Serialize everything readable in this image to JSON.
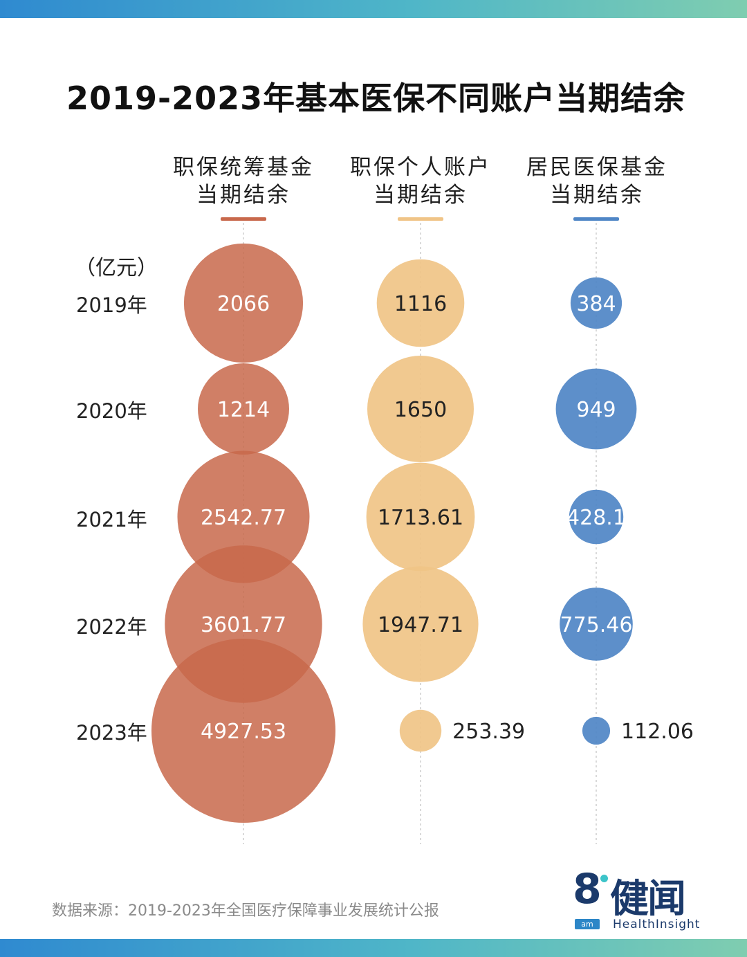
{
  "title": "2019-2023年基本医保不同账户当期结余",
  "unit_label": "（亿元）",
  "columns": [
    {
      "line1": "职保统筹基金",
      "line2": "当期结余",
      "color": "#c8684b"
    },
    {
      "line1": "职保个人账户",
      "line2": "当期结余",
      "color": "#f0c487"
    },
    {
      "line1": "居民医保基金",
      "line2": "当期结余",
      "color": "#4f86c6"
    }
  ],
  "chart_data": {
    "type": "bubble",
    "title": "2019-2023年基本医保不同账户当期结余",
    "unit": "亿元",
    "categories": [
      "2019年",
      "2020年",
      "2021年",
      "2022年",
      "2023年"
    ],
    "series": [
      {
        "name": "职保统筹基金当期结余",
        "values": [
          2066,
          1214,
          2542.77,
          3601.77,
          4927.53
        ],
        "labels": [
          "2066",
          "1214",
          "2542.77",
          "3601.77",
          "4927.53"
        ],
        "color": "#c8684b"
      },
      {
        "name": "职保个人账户当期结余",
        "values": [
          1116,
          1650,
          1713.61,
          1947.71,
          253.39
        ],
        "labels": [
          "1116",
          "1650",
          "1713.61",
          "1947.71",
          "253.39"
        ],
        "color": "#f0c487"
      },
      {
        "name": "居民医保基金当期结余",
        "values": [
          384,
          949,
          428.1,
          775.46,
          112.06
        ],
        "labels": [
          "384",
          "949",
          "428.1",
          "775.46",
          "112.06"
        ],
        "color": "#4f86c6"
      }
    ]
  },
  "footer": "数据来源：2019-2023年全国医疗保障事业发展统计公报",
  "logo": {
    "number": "8",
    "cn": "健闻",
    "badge": "am",
    "en": "HealthInsight"
  }
}
